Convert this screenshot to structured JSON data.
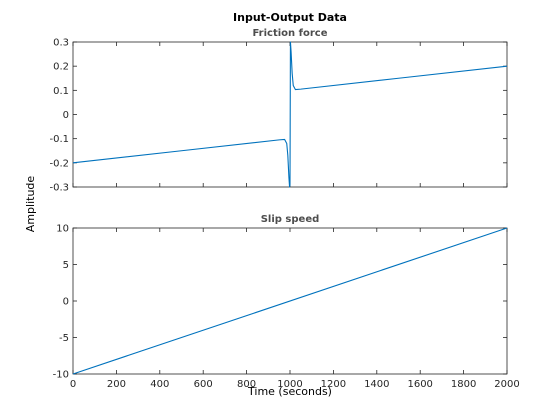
{
  "chart_data": {
    "type": "line",
    "title": "Input-Output Data",
    "xlabel": "Time (seconds)",
    "ylabel": "Amplitude",
    "line_color": "#0072bd",
    "x_ticks": [
      "0",
      "200",
      "400",
      "600",
      "800",
      "1000",
      "1200",
      "1400",
      "1600",
      "1800",
      "2000"
    ],
    "subplots": [
      {
        "subtitle": "Friction force",
        "xlim": [
          0,
          2000
        ],
        "ylim": [
          -0.3,
          0.3
        ],
        "y_ticks": [
          "0.3",
          "0.2",
          "0.1",
          "0",
          "-0.1",
          "-0.2",
          "-0.3"
        ],
        "series": [
          {
            "x": [
              0,
              500,
              950,
              975,
              985,
              990,
              995,
              998,
              1000,
              1002,
              1005,
              1010,
              1015,
              1025,
              1050,
              1500,
              2000
            ],
            "y": [
              -0.2,
              -0.15,
              -0.105,
              -0.103,
              -0.12,
              -0.17,
              -0.26,
              -0.3,
              -0.29,
              0.3,
              0.26,
              0.17,
              0.12,
              0.103,
              0.105,
              0.15,
              0.2
            ]
          }
        ]
      },
      {
        "subtitle": "Slip speed",
        "xlim": [
          0,
          2000
        ],
        "ylim": [
          -10,
          10
        ],
        "y_ticks": [
          "10",
          "5",
          "0",
          "-5",
          "-10"
        ],
        "series": [
          {
            "x": [
              0,
              2000
            ],
            "y": [
              -10,
              10
            ]
          }
        ]
      }
    ]
  }
}
